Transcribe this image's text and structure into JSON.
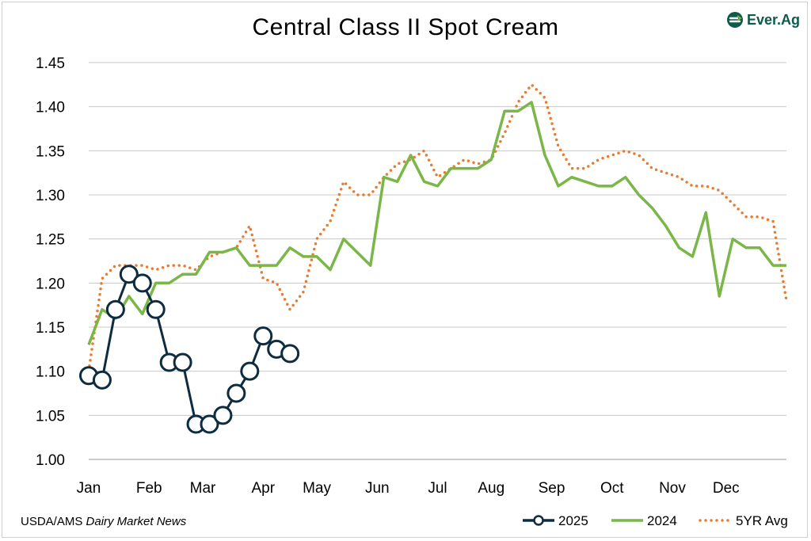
{
  "brand": {
    "name": "Ever.Ag",
    "colors": {
      "primary": "#0e5b4c",
      "accent": "#7ab648"
    }
  },
  "source": {
    "prefix": "USDA/AMS ",
    "publication": "Dairy Market News"
  },
  "chart_data": {
    "type": "line",
    "title": "Central Class II Spot Cream",
    "xlabel": "",
    "ylabel": "",
    "ylim": [
      1.0,
      1.45
    ],
    "yticks": [
      "1.00",
      "1.05",
      "1.10",
      "1.15",
      "1.20",
      "1.25",
      "1.30",
      "1.35",
      "1.40",
      "1.45"
    ],
    "xlim": [
      1,
      53
    ],
    "x_tick_positions": [
      1,
      5.5,
      9.5,
      14,
      18,
      22.5,
      27,
      31,
      35.5,
      40,
      44.5,
      48.5
    ],
    "months": [
      "Jan",
      "Feb",
      "Mar",
      "Apr",
      "May",
      "Jun",
      "Jul",
      "Aug",
      "Sep",
      "Oct",
      "Nov",
      "Dec"
    ],
    "grid": true,
    "legend_position": "bottom-right",
    "series": [
      {
        "name": "2025",
        "style": "line-circle",
        "color": "#0d2c3f",
        "x": [
          1,
          2,
          3,
          4,
          5,
          6,
          7,
          8,
          9,
          10,
          11,
          12,
          13,
          14,
          15,
          16
        ],
        "values": [
          1.095,
          1.09,
          1.17,
          1.21,
          1.2,
          1.17,
          1.11,
          1.11,
          1.04,
          1.04,
          1.05,
          1.075,
          1.1,
          1.14,
          1.125,
          1.12
        ]
      },
      {
        "name": "2024",
        "style": "solid",
        "color": "#7ab648",
        "x": [
          1,
          2,
          3,
          4,
          5,
          6,
          7,
          8,
          9,
          10,
          11,
          12,
          13,
          14,
          15,
          16,
          17,
          18,
          19,
          20,
          21,
          22,
          23,
          24,
          25,
          26,
          27,
          28,
          29,
          30,
          31,
          32,
          33,
          34,
          35,
          36,
          37,
          38,
          39,
          40,
          41,
          42,
          43,
          44,
          45,
          46,
          47,
          48,
          49,
          50,
          51,
          52,
          53
        ],
        "values": [
          1.13,
          1.17,
          1.16,
          1.185,
          1.165,
          1.2,
          1.2,
          1.21,
          1.21,
          1.235,
          1.235,
          1.24,
          1.22,
          1.22,
          1.22,
          1.24,
          1.23,
          1.23,
          1.215,
          1.25,
          1.235,
          1.22,
          1.32,
          1.315,
          1.345,
          1.315,
          1.31,
          1.33,
          1.33,
          1.33,
          1.34,
          1.395,
          1.395,
          1.405,
          1.345,
          1.31,
          1.32,
          1.315,
          1.31,
          1.31,
          1.32,
          1.3,
          1.285,
          1.265,
          1.24,
          1.23,
          1.28,
          1.185,
          1.25,
          1.24,
          1.24,
          1.22,
          1.22
        ]
      },
      {
        "name": "5YR Avg",
        "style": "dotted",
        "color": "#e87b2f",
        "x": [
          1,
          2,
          3,
          4,
          5,
          6,
          7,
          8,
          9,
          10,
          11,
          12,
          13,
          14,
          15,
          16,
          17,
          18,
          19,
          20,
          21,
          22,
          23,
          24,
          25,
          26,
          27,
          28,
          29,
          30,
          31,
          32,
          33,
          34,
          35,
          36,
          37,
          38,
          39,
          40,
          41,
          42,
          43,
          44,
          45,
          46,
          47,
          48,
          49,
          50,
          51,
          52,
          53
        ],
        "values": [
          1.1,
          1.205,
          1.22,
          1.22,
          1.22,
          1.215,
          1.22,
          1.22,
          1.215,
          1.23,
          1.235,
          1.24,
          1.265,
          1.205,
          1.2,
          1.17,
          1.19,
          1.25,
          1.27,
          1.315,
          1.3,
          1.3,
          1.32,
          1.335,
          1.34,
          1.35,
          1.32,
          1.33,
          1.34,
          1.335,
          1.34,
          1.37,
          1.405,
          1.425,
          1.41,
          1.355,
          1.33,
          1.33,
          1.34,
          1.345,
          1.35,
          1.345,
          1.33,
          1.325,
          1.32,
          1.31,
          1.31,
          1.305,
          1.29,
          1.275,
          1.275,
          1.27,
          1.18
        ]
      }
    ]
  }
}
